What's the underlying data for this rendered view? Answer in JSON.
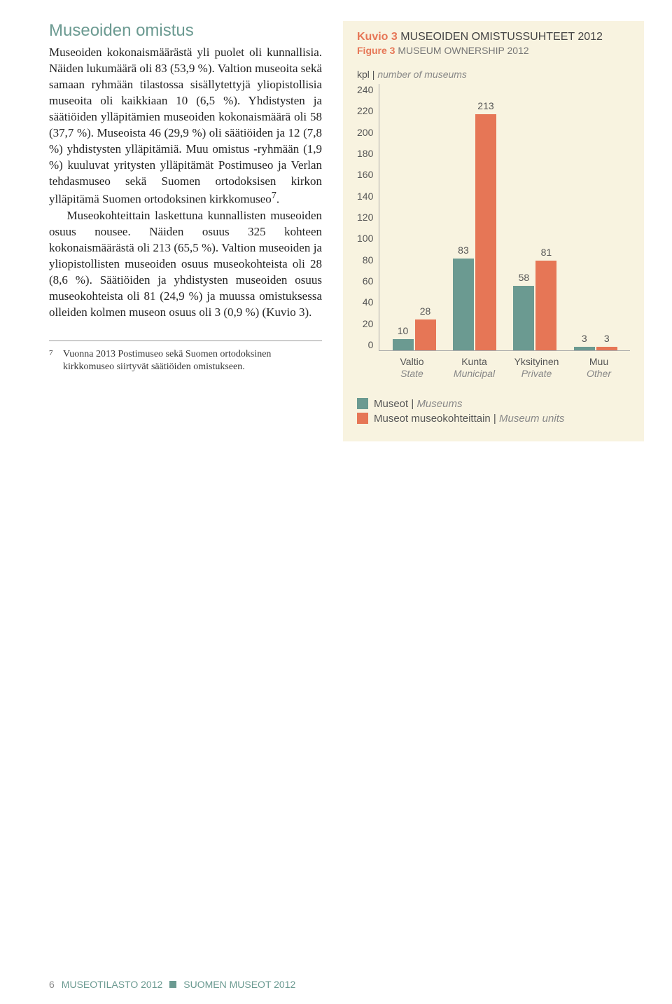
{
  "heading": "Museoiden omistus",
  "para1": "Museoiden kokonaismäärästä yli puolet oli kunnallisia. Näiden lukumäärä oli 83 (53,9 %). Valtion museoita sekä samaan ryhmään tilastossa sisällytettyjä yliopistollisia museoita oli kaikkiaan 10 (6,5 %). Yhdistysten ja säätiöiden ylläpitämien museoiden kokonaismäärä oli 58 (37,7 %). Museoista 46 (29,9 %) oli säätiöiden ja 12 (7,8 %) yhdistysten ylläpitämiä. Muu omistus -ryhmään (1,9 %) kuuluvat yritysten ylläpitämät Postimuseo ja Verlan tehdasmuseo sekä Suomen ortodoksisen kirkon ylläpitämä Suomen ortodoksinen kirkkomuseo",
  "para1_sup": "7",
  "para1_suffix": ".",
  "para2": "Museokohteittain laskettuna kunnallisten museoiden osuus nousee. Näiden osuus 325 kohteen kokonaismäärästä oli 213 (65,5 %). Valtion museoiden ja yliopistollisten museoiden osuus museokohteista oli 28 (8,6 %). Säätiöiden ja yhdistysten museoiden osuus museokohteista oli 81 (24,9 %) ja muussa omistuksessa olleiden kolmen museon osuus oli 3 (0,9 %) (Kuvio 3).",
  "footnote_marker": "7",
  "footnote_text": "Vuonna 2013 Postimuseo sekä Suomen ortodoksinen kirkkomuseo siirtyvät säätiöiden omistukseen.",
  "chart": {
    "title_prefix": "Kuvio 3",
    "title_fi": "MUSEOIDEN OMISTUSSUHTEET 2012",
    "subtitle_prefix": "Figure 3",
    "subtitle_en": "MUSEUM OWNERSHIP 2012",
    "axis_fi": "kpl",
    "axis_sep": " | ",
    "axis_en": "number of museums",
    "ymax": 240,
    "yticks": [
      240,
      220,
      200,
      180,
      160,
      140,
      120,
      100,
      80,
      60,
      40,
      20,
      0
    ],
    "colors": {
      "series1": "#6b9a91",
      "series2": "#e67656"
    },
    "groups": [
      {
        "label_fi": "Valtio",
        "label_en": "State",
        "v1": 10,
        "v2": 28
      },
      {
        "label_fi": "Kunta",
        "label_en": "Municipal",
        "v1": 83,
        "v2": 213
      },
      {
        "label_fi": "Yksityinen",
        "label_en": "Private",
        "v1": 58,
        "v2": 81
      },
      {
        "label_fi": "Muu",
        "label_en": "Other",
        "v1": 3,
        "v2": 3
      }
    ],
    "legend1_fi": "Museot",
    "legend1_en": "Museums",
    "legend2_fi": "Museot museokohteittain",
    "legend2_en": "Museum units"
  },
  "footer": {
    "pagenum": "6",
    "left": "MUSEOTILASTO 2012",
    "right": "SUOMEN MUSEOT 2012"
  }
}
